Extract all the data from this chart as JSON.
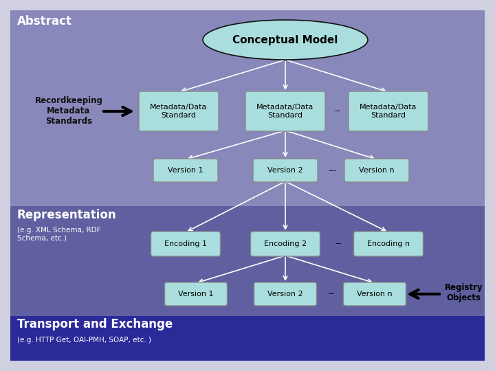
{
  "bg_outer": "#d0d0e0",
  "bg_abstract": "#8888bb",
  "bg_representation": "#6060a0",
  "bg_transport": "#2a2a99",
  "text_white": "#ffffff",
  "text_black": "#000000",
  "text_bold_black": "#111111",
  "box_fill": "#aadddd",
  "box_edge": "#888888",
  "ellipse_fill": "#aadddd",
  "ellipse_edge": "#111111",
  "arrow_white": "#ffffff",
  "arrow_black": "#000000",
  "title_abstract": "Abstract",
  "title_representation": "Representation",
  "title_transport": "Transport and Exchange",
  "sub_abstract": "Recordkeeping\nMetadata\nStandards",
  "sub_representation": "(e.g. XML Schema, RDF\nSchema, etc.)",
  "sub_transport": "(e.g. HTTP Get, OAI-PMH, SOAP, etc. )",
  "conceptual_model": "Conceptual Model",
  "metadata_standard": "Metadata/Data\nStandard",
  "version1_top": "Version 1",
  "version2_top": "Version 2",
  "versionn_top": "Version n",
  "encoding1": "Encoding 1",
  "encoding2": "Encoding 2",
  "encodingn": "Encoding n",
  "version1_bot": "Version 1",
  "version2_bot": "Version 2",
  "versionn_bot": "Version n",
  "registry_objects": "Registry\nObjects",
  "dots_meta": "--",
  "dots_ver": "---",
  "dots_enc": "--",
  "dots_verbot": "--"
}
